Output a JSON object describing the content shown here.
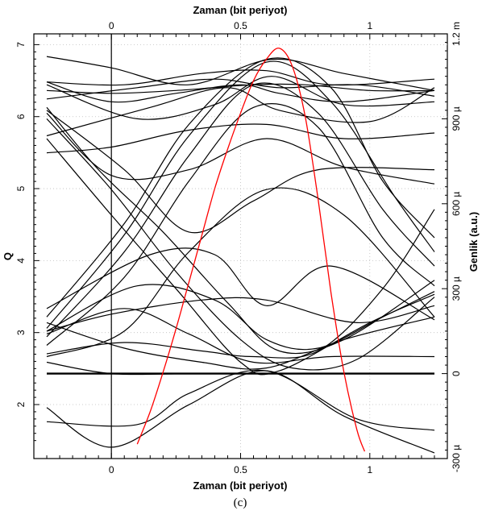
{
  "chart_data": {
    "type": "line",
    "caption": "(c)",
    "xlabel_bottom": "Zaman (bit periyot)",
    "xlabel_top": "Zaman (bit periyot)",
    "ylabel_left": "Q",
    "ylabel_right": "Genlik (a.u.)",
    "xlim": [
      -0.3,
      1.3
    ],
    "ylim_left": [
      1.25,
      7.15
    ],
    "ylim_right_uV": [
      -300,
      1200
    ],
    "x_ticks": [
      {
        "v": 0,
        "t": "0"
      },
      {
        "v": 0.5,
        "t": "0.5"
      },
      {
        "v": 1,
        "t": "1"
      }
    ],
    "y_left_ticks": [
      {
        "v": 2,
        "t": "2"
      },
      {
        "v": 3,
        "t": "3"
      },
      {
        "v": 4,
        "t": "4"
      },
      {
        "v": 5,
        "t": "5"
      },
      {
        "v": 6,
        "t": "6"
      },
      {
        "v": 7,
        "t": "7"
      }
    ],
    "y_right_ticks": [
      {
        "v": -300,
        "t": "-300 µ"
      },
      {
        "v": 0,
        "t": "0"
      },
      {
        "v": 300,
        "t": "300 µ"
      },
      {
        "v": 600,
        "t": "600 µ"
      },
      {
        "v": 900,
        "t": "900 µ"
      },
      {
        "v": 1200,
        "t": "1.2 m"
      }
    ],
    "colors": {
      "eye": "#000000",
      "q_factor": "#ff0000",
      "axes": "#000000"
    },
    "eye_traces_uV": [
      {
        "x": [
          -0.25,
          0.0,
          0.3,
          0.62,
          0.9,
          1.25
        ],
        "y": [
          1120,
          1080,
          1020,
          1110,
          1060,
          1000
        ]
      },
      {
        "x": [
          -0.25,
          0.05,
          0.35,
          0.6,
          0.85,
          1.25
        ],
        "y": [
          1030,
          1020,
          1060,
          1070,
          1020,
          1040
        ]
      },
      {
        "x": [
          -0.25,
          0.1,
          0.4,
          0.65,
          0.95,
          1.25
        ],
        "y": [
          970,
          1010,
          1040,
          1010,
          1020,
          980
        ]
      },
      {
        "x": [
          -0.25,
          0.0,
          0.25,
          0.5,
          0.65,
          0.9,
          1.25
        ],
        "y": [
          1030,
          960,
          990,
          1020,
          990,
          960,
          1000
        ]
      },
      {
        "x": [
          -0.25,
          0.15,
          0.45,
          0.65,
          1.0,
          1.25
        ],
        "y": [
          840,
          940,
          1010,
          930,
          890,
          1010
        ]
      },
      {
        "x": [
          -0.25,
          0.0,
          0.25,
          0.55,
          0.75,
          1.0,
          1.25
        ],
        "y": [
          1000,
          990,
          1000,
          1020,
          1020,
          1000,
          1000
        ]
      },
      {
        "x": [
          -0.25,
          0.0,
          0.3,
          0.6,
          0.9,
          1.25
        ],
        "y": [
          780,
          800,
          860,
          880,
          830,
          850
        ]
      },
      {
        "x": [
          -0.25,
          0.1,
          0.4,
          0.62,
          0.9,
          1.25
        ],
        "y": [
          1020,
          900,
          950,
          1050,
          950,
          960
        ]
      },
      {
        "x": [
          -0.25,
          0.0,
          0.3,
          0.6,
          0.9,
          1.25
        ],
        "y": [
          920,
          700,
          720,
          830,
          730,
          670
        ]
      },
      {
        "x": [
          -0.25,
          0.05,
          0.3,
          0.55,
          0.8,
          1.25
        ],
        "y": [
          930,
          720,
          500,
          610,
          720,
          720
        ]
      },
      {
        "x": [
          -0.25,
          -0.05,
          0.2,
          0.45,
          0.65,
          0.9,
          1.25
        ],
        "y": [
          940,
          720,
          500,
          250,
          80,
          120,
          330
        ]
      },
      {
        "x": [
          -0.25,
          0.0,
          0.25,
          0.5,
          0.7,
          0.95,
          1.25
        ],
        "y": [
          900,
          650,
          360,
          120,
          20,
          50,
          270
        ]
      },
      {
        "x": [
          -0.25,
          0.0,
          0.25,
          0.5,
          0.65,
          1.0,
          1.25
        ],
        "y": [
          830,
          560,
          300,
          40,
          10,
          180,
          280
        ]
      },
      {
        "x": [
          -0.25,
          0.05,
          0.3,
          0.6,
          0.9,
          1.25
        ],
        "y": [
          60,
          150,
          430,
          650,
          560,
          200
        ]
      },
      {
        "x": [
          -0.25,
          0.05,
          0.3,
          0.55,
          0.8,
          1.05,
          1.25
        ],
        "y": [
          100,
          340,
          680,
          940,
          870,
          480,
          310
        ]
      },
      {
        "x": [
          -0.25,
          0.05,
          0.3,
          0.55,
          0.8,
          1.05,
          1.25
        ],
        "y": [
          130,
          430,
          770,
          1020,
          920,
          580,
          380
        ]
      },
      {
        "x": [
          -0.25,
          0.05,
          0.3,
          0.6,
          0.85,
          1.1,
          1.25
        ],
        "y": [
          160,
          490,
          840,
          1100,
          960,
          620,
          430
        ]
      },
      {
        "x": [
          -0.25,
          0.05,
          0.3,
          0.6,
          0.85,
          1.05,
          1.25
        ],
        "y": [
          200,
          530,
          880,
          1110,
          1010,
          680,
          480
        ]
      },
      {
        "x": [
          -0.25,
          0.1,
          0.4,
          0.6,
          0.8,
          1.05,
          1.25
        ],
        "y": [
          150,
          310,
          260,
          120,
          90,
          200,
          290
        ]
      },
      {
        "x": [
          -0.25,
          0.15,
          0.4,
          0.6,
          0.85,
          1.25
        ],
        "y": [
          230,
          420,
          420,
          240,
          380,
          190
        ]
      },
      {
        "x": [
          -0.25,
          0.0,
          0.35,
          0.6,
          0.95,
          1.25
        ],
        "y": [
          150,
          210,
          260,
          260,
          180,
          240
        ]
      },
      {
        "x": [
          -0.25,
          0.1,
          0.3,
          0.6,
          0.95,
          1.25
        ],
        "y": [
          -170,
          -180,
          -70,
          10,
          -160,
          -200
        ]
      },
      {
        "x": [
          -0.25,
          0.05,
          0.3,
          0.55,
          0.85,
          1.25
        ],
        "y": [
          140,
          230,
          140,
          40,
          60,
          60
        ]
      },
      {
        "x": [
          -0.25,
          0.05,
          0.35,
          0.55,
          0.8,
          1.05,
          1.25
        ],
        "y": [
          70,
          110,
          80,
          60,
          80,
          300,
          580
        ]
      },
      {
        "x": [
          -0.25,
          0.0,
          0.3,
          0.6,
          0.9,
          1.25
        ],
        "y": [
          -120,
          -260,
          -110,
          10,
          -150,
          -280
        ]
      },
      {
        "x": [
          -0.25,
          0.05,
          0.35,
          0.6,
          0.9,
          1.25
        ],
        "y": [
          180,
          90,
          40,
          20,
          120,
          200
        ]
      },
      {
        "x": [
          -0.25,
          0.0,
          0.3,
          0.6,
          0.9,
          1.25
        ],
        "y": [
          40,
          0,
          0,
          0,
          0,
          0
        ]
      },
      {
        "x": [
          -0.25,
          0.0,
          0.2,
          0.4,
          0.6,
          0.8,
          1.0,
          1.25
        ],
        "y": [
          0,
          0,
          0,
          0,
          0,
          0,
          0,
          0
        ]
      }
    ],
    "q_factor_curve": {
      "x": [
        0.1,
        0.15,
        0.2,
        0.25,
        0.3,
        0.35,
        0.4,
        0.45,
        0.5,
        0.55,
        0.6,
        0.65,
        0.7,
        0.75,
        0.8,
        0.85,
        0.9,
        0.95,
        0.98
      ],
      "y": [
        1.45,
        1.9,
        2.45,
        3.05,
        3.7,
        4.35,
        5.0,
        5.55,
        6.05,
        6.5,
        6.8,
        6.95,
        6.7,
        6.0,
        4.85,
        3.55,
        2.45,
        1.65,
        1.35
      ]
    }
  }
}
